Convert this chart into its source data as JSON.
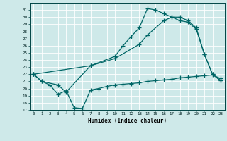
{
  "xlabel": "Humidex (Indice chaleur)",
  "bg_color": "#cee9e9",
  "grid_color": "#ffffff",
  "line_color": "#006666",
  "xlim": [
    -0.5,
    23.5
  ],
  "ylim": [
    17,
    32
  ],
  "xticks": [
    0,
    1,
    2,
    3,
    4,
    5,
    6,
    7,
    8,
    9,
    10,
    11,
    12,
    13,
    14,
    15,
    16,
    17,
    18,
    19,
    20,
    21,
    22,
    23
  ],
  "yticks": [
    17,
    18,
    19,
    20,
    21,
    22,
    23,
    24,
    25,
    26,
    27,
    28,
    29,
    30,
    31
  ],
  "line1_x": [
    0,
    1,
    2,
    3,
    4,
    5,
    6,
    7,
    8,
    9,
    10,
    11,
    12,
    13,
    14,
    15,
    16,
    17,
    18,
    19,
    20,
    21,
    22,
    23
  ],
  "line1_y": [
    22,
    21,
    20.5,
    19.2,
    19.7,
    17.3,
    17.2,
    19.8,
    20.0,
    20.3,
    20.5,
    20.6,
    20.7,
    20.8,
    21.0,
    21.1,
    21.2,
    21.3,
    21.5,
    21.6,
    21.7,
    21.8,
    21.9,
    21.4
  ],
  "line2_x": [
    0,
    1,
    3,
    4,
    7,
    10,
    11,
    12,
    13,
    14,
    15,
    16,
    17,
    18,
    19,
    20,
    21,
    22,
    23
  ],
  "line2_y": [
    22,
    21,
    20.5,
    19.5,
    23.2,
    24.5,
    26.0,
    27.3,
    28.5,
    31.2,
    31.0,
    30.5,
    30.0,
    29.5,
    29.3,
    28.3,
    24.8,
    22.0,
    21.1
  ],
  "line3_x": [
    0,
    7,
    10,
    13,
    14,
    16,
    17,
    18,
    19,
    20,
    21,
    22,
    23
  ],
  "line3_y": [
    22,
    23.2,
    24.2,
    26.2,
    27.5,
    29.5,
    30.0,
    30.0,
    29.5,
    28.5,
    24.8,
    22.0,
    21.1
  ]
}
